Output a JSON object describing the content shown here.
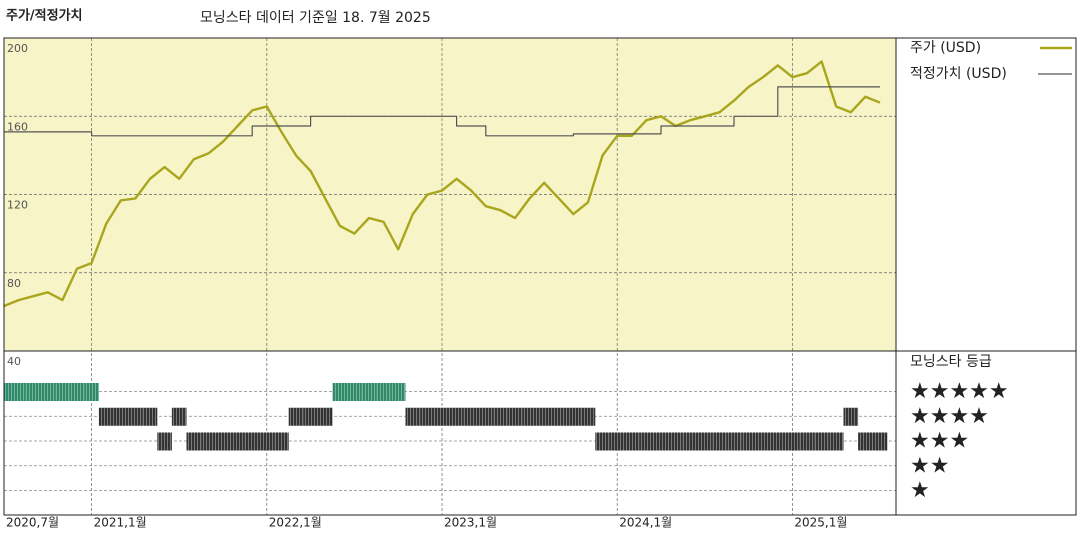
{
  "chart_data": [
    {
      "type": "line",
      "title": "주가/적정가치",
      "subtitle": "모닝스타 데이터 기준일 18. 7월 2025",
      "background": "#f7f4c8",
      "grid": true,
      "x": [
        "2020-07",
        "2020-08",
        "2020-09",
        "2020-10",
        "2020-11",
        "2020-12",
        "2021-01",
        "2021-02",
        "2021-03",
        "2021-04",
        "2021-05",
        "2021-06",
        "2021-07",
        "2021-08",
        "2021-09",
        "2021-10",
        "2021-11",
        "2021-12",
        "2022-01",
        "2022-02",
        "2022-03",
        "2022-04",
        "2022-05",
        "2022-06",
        "2022-07",
        "2022-08",
        "2022-09",
        "2022-10",
        "2022-11",
        "2022-12",
        "2023-01",
        "2023-02",
        "2023-03",
        "2023-04",
        "2023-05",
        "2023-06",
        "2023-07",
        "2023-08",
        "2023-09",
        "2023-10",
        "2023-11",
        "2023-12",
        "2024-01",
        "2024-02",
        "2024-03",
        "2024-04",
        "2024-05",
        "2024-06",
        "2024-07",
        "2024-08",
        "2024-09",
        "2024-10",
        "2024-11",
        "2024-12",
        "2025-01",
        "2025-02",
        "2025-03",
        "2025-04",
        "2025-05",
        "2025-06",
        "2025-07"
      ],
      "xlim": [
        "2020-07",
        "2025-07"
      ],
      "xticks": [
        {
          "value": "2020-07",
          "label": "2020,7월"
        },
        {
          "value": "2021-01",
          "label": "2021,1월"
        },
        {
          "value": "2022-01",
          "label": "2022,1월"
        },
        {
          "value": "2023-01",
          "label": "2023,1월"
        },
        {
          "value": "2024-01",
          "label": "2024,1월"
        },
        {
          "value": "2025-01",
          "label": "2025,1월"
        }
      ],
      "ylim": [
        40,
        200
      ],
      "yticks": [
        40,
        80,
        120,
        160,
        200
      ],
      "series": [
        {
          "name": "주가 (USD)",
          "color": "#a9a61e",
          "values": [
            63,
            66,
            68,
            70,
            66,
            82,
            85,
            105,
            117,
            118,
            128,
            134,
            128,
            138,
            141,
            147,
            155,
            163,
            165,
            152,
            140,
            132,
            118,
            104,
            100,
            108,
            106,
            92,
            110,
            120,
            122,
            128,
            122,
            114,
            112,
            108,
            118,
            126,
            118,
            110,
            116,
            140,
            150,
            150,
            158,
            160,
            155,
            158,
            160,
            162,
            168,
            175,
            180,
            186,
            180,
            182,
            188,
            165,
            162,
            170,
            167
          ]
        },
        {
          "name": "적정가치 (USD)",
          "color": "#555555",
          "values": [
            152,
            152,
            152,
            152,
            152,
            152,
            150,
            150,
            150,
            150,
            150,
            150,
            150,
            150,
            150,
            150,
            150,
            155,
            155,
            155,
            155,
            160,
            160,
            160,
            160,
            160,
            160,
            160,
            160,
            160,
            160,
            155,
            155,
            150,
            150,
            150,
            150,
            150,
            150,
            151,
            151,
            151,
            151,
            151,
            151,
            155,
            155,
            155,
            155,
            155,
            160,
            160,
            160,
            175,
            175,
            175,
            175,
            175,
            175,
            175,
            175
          ]
        }
      ]
    },
    {
      "type": "rating",
      "title": "모닝스타 등급",
      "levels": [
        "★★★★★",
        "★★★★",
        "★★★",
        "★★",
        "★"
      ],
      "level_colors": [
        "#2e8a68",
        "#333333",
        "#333333",
        "#333333",
        "#333333"
      ],
      "values": [
        5,
        5,
        5,
        5,
        5,
        5,
        5,
        4,
        4,
        4,
        4,
        3,
        4,
        3,
        3,
        3,
        3,
        3,
        3,
        3,
        4,
        4,
        4,
        5,
        5,
        5,
        5,
        5,
        4,
        4,
        4,
        4,
        4,
        4,
        4,
        4,
        4,
        4,
        4,
        4,
        4,
        3,
        3,
        3,
        3,
        3,
        3,
        3,
        3,
        3,
        3,
        3,
        3,
        3,
        3,
        3,
        3,
        3,
        4,
        3,
        3
      ]
    }
  ]
}
